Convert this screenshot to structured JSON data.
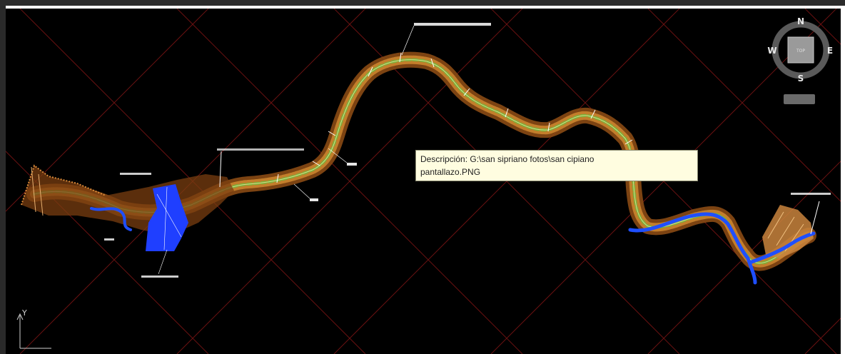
{
  "tooltip": {
    "line1": "Descripción: G:\\san sipriano fotos\\san cipiano",
    "line2": "pantallazo.PNG"
  },
  "viewcube": {
    "north": "N",
    "south": "S",
    "east": "E",
    "west": "W",
    "top_face": "TOP"
  },
  "ucs": {
    "y_label": "Y"
  },
  "colors": {
    "background": "#000000",
    "grid": "#7a1414",
    "terrain": "#b5651d",
    "contours": "#5fa032",
    "river": "#1f4fff",
    "tooltip_bg": "#fffde0"
  },
  "icons": [
    "viewcube-icon",
    "compass-ring-icon",
    "ucs-axis-icon"
  ]
}
